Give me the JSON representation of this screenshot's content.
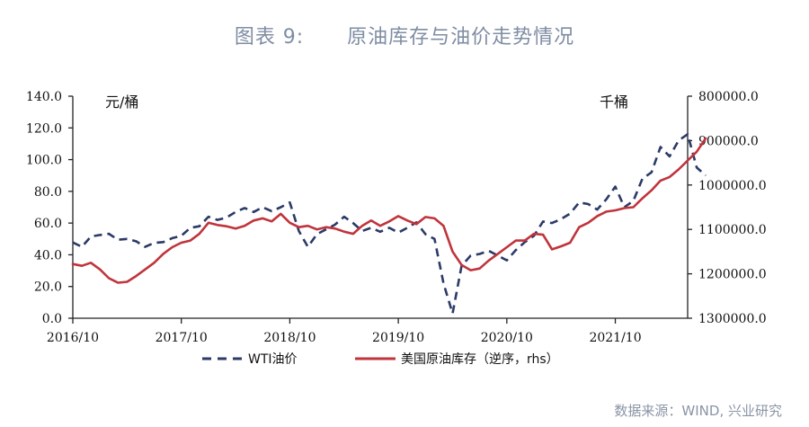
{
  "figure": {
    "title": "图表 9:      原油库存与油价走势情况",
    "source": "数据来源：WIND, 兴业研究"
  },
  "chart_data": {
    "type": "line",
    "x_tick_labels": [
      "2016/10",
      "2017/10",
      "2018/10",
      "2019/10",
      "2020/10",
      "2021/10"
    ],
    "x_range": [
      "2016/10",
      "2022/06"
    ],
    "left_axis": {
      "unit_label": "元/桶",
      "ylim": [
        0,
        140
      ],
      "tick_labels": [
        "0.0",
        "20.0",
        "40.0",
        "60.0",
        "80.0",
        "100.0",
        "120.0",
        "140.0"
      ]
    },
    "right_axis": {
      "unit_label": "千桶",
      "ylim": [
        800000,
        1300000
      ],
      "inverted": true,
      "tick_labels": [
        "800000.0",
        "900000.0",
        "1000000.0",
        "1100000.0",
        "1200000.0",
        "1300000.0"
      ]
    },
    "grid": false,
    "legend_position": "bottom",
    "series": [
      {
        "name": "WTI油价",
        "axis": "left",
        "color": "#2b3a67",
        "style": "dashed",
        "points": [
          [
            "2016/10",
            47.8
          ],
          [
            "2016/11",
            45.0
          ],
          [
            "2016/12",
            51.5
          ],
          [
            "2017/01",
            52.5
          ],
          [
            "2017/02",
            53.2
          ],
          [
            "2017/03",
            49.5
          ],
          [
            "2017/04",
            50.0
          ],
          [
            "2017/05",
            48.5
          ],
          [
            "2017/06",
            45.0
          ],
          [
            "2017/07",
            47.5
          ],
          [
            "2017/08",
            48.0
          ],
          [
            "2017/09",
            50.5
          ],
          [
            "2017/10",
            52.0
          ],
          [
            "2017/11",
            57.0
          ],
          [
            "2017/12",
            58.0
          ],
          [
            "2018/01",
            64.0
          ],
          [
            "2018/02",
            62.0
          ],
          [
            "2018/03",
            63.5
          ],
          [
            "2018/04",
            67.0
          ],
          [
            "2018/05",
            69.5
          ],
          [
            "2018/06",
            67.0
          ],
          [
            "2018/07",
            70.0
          ],
          [
            "2018/08",
            67.5
          ],
          [
            "2018/09",
            70.0
          ],
          [
            "2018/10",
            73.0
          ],
          [
            "2018/11",
            55.0
          ],
          [
            "2018/12",
            45.0
          ],
          [
            "2019/01",
            53.0
          ],
          [
            "2019/02",
            56.0
          ],
          [
            "2019/03",
            59.0
          ],
          [
            "2019/04",
            64.0
          ],
          [
            "2019/05",
            60.0
          ],
          [
            "2019/06",
            55.0
          ],
          [
            "2019/07",
            57.0
          ],
          [
            "2019/08",
            54.5
          ],
          [
            "2019/09",
            57.0
          ],
          [
            "2019/10",
            54.0
          ],
          [
            "2019/11",
            57.0
          ],
          [
            "2019/12",
            60.5
          ],
          [
            "2020/01",
            53.0
          ],
          [
            "2020/02",
            50.0
          ],
          [
            "2020/03",
            22.0
          ],
          [
            "2020/04",
            3.0
          ],
          [
            "2020/05",
            33.0
          ],
          [
            "2020/06",
            39.5
          ],
          [
            "2020/07",
            40.5
          ],
          [
            "2020/08",
            42.5
          ],
          [
            "2020/09",
            39.5
          ],
          [
            "2020/10",
            36.5
          ],
          [
            "2020/11",
            43.0
          ],
          [
            "2020/12",
            48.0
          ],
          [
            "2021/01",
            52.0
          ],
          [
            "2021/02",
            61.0
          ],
          [
            "2021/03",
            60.0
          ],
          [
            "2021/04",
            62.5
          ],
          [
            "2021/05",
            66.0
          ],
          [
            "2021/06",
            73.0
          ],
          [
            "2021/07",
            72.0
          ],
          [
            "2021/08",
            68.5
          ],
          [
            "2021/09",
            75.0
          ],
          [
            "2021/10",
            83.0
          ],
          [
            "2021/11",
            70.0
          ],
          [
            "2021/12",
            74.0
          ],
          [
            "2022/01",
            88.0
          ],
          [
            "2022/02",
            92.0
          ],
          [
            "2022/03",
            108.0
          ],
          [
            "2022/04",
            102.0
          ],
          [
            "2022/05",
            112.0
          ],
          [
            "2022/06",
            116.0
          ],
          [
            "2022/07",
            95.0
          ],
          [
            "2022/08",
            90.0
          ]
        ]
      },
      {
        "name": "美国原油库存（逆序，rhs）",
        "axis": "right",
        "color": "#c0343c",
        "style": "solid",
        "points": [
          [
            "2016/10",
            1178000
          ],
          [
            "2016/11",
            1182000
          ],
          [
            "2016/12",
            1175000
          ],
          [
            "2017/01",
            1190000
          ],
          [
            "2017/02",
            1210000
          ],
          [
            "2017/03",
            1220000
          ],
          [
            "2017/04",
            1218000
          ],
          [
            "2017/05",
            1205000
          ],
          [
            "2017/06",
            1190000
          ],
          [
            "2017/07",
            1175000
          ],
          [
            "2017/08",
            1155000
          ],
          [
            "2017/09",
            1140000
          ],
          [
            "2017/10",
            1130000
          ],
          [
            "2017/11",
            1125000
          ],
          [
            "2017/12",
            1110000
          ],
          [
            "2018/01",
            1085000
          ],
          [
            "2018/02",
            1090000
          ],
          [
            "2018/03",
            1093000
          ],
          [
            "2018/04",
            1098000
          ],
          [
            "2018/05",
            1092000
          ],
          [
            "2018/06",
            1080000
          ],
          [
            "2018/07",
            1075000
          ],
          [
            "2018/08",
            1082000
          ],
          [
            "2018/09",
            1065000
          ],
          [
            "2018/10",
            1085000
          ],
          [
            "2018/11",
            1095000
          ],
          [
            "2018/12",
            1092000
          ],
          [
            "2019/01",
            1100000
          ],
          [
            "2019/02",
            1095000
          ],
          [
            "2019/03",
            1098000
          ],
          [
            "2019/04",
            1105000
          ],
          [
            "2019/05",
            1110000
          ],
          [
            "2019/06",
            1092000
          ],
          [
            "2019/07",
            1080000
          ],
          [
            "2019/08",
            1092000
          ],
          [
            "2019/09",
            1082000
          ],
          [
            "2019/10",
            1070000
          ],
          [
            "2019/11",
            1080000
          ],
          [
            "2019/12",
            1088000
          ],
          [
            "2020/01",
            1072000
          ],
          [
            "2020/02",
            1075000
          ],
          [
            "2020/03",
            1092000
          ],
          [
            "2020/04",
            1150000
          ],
          [
            "2020/05",
            1180000
          ],
          [
            "2020/06",
            1192000
          ],
          [
            "2020/07",
            1188000
          ],
          [
            "2020/08",
            1170000
          ],
          [
            "2020/09",
            1155000
          ],
          [
            "2020/10",
            1140000
          ],
          [
            "2020/11",
            1125000
          ],
          [
            "2020/12",
            1125000
          ],
          [
            "2021/01",
            1110000
          ],
          [
            "2021/02",
            1112000
          ],
          [
            "2021/03",
            1145000
          ],
          [
            "2021/04",
            1138000
          ],
          [
            "2021/05",
            1130000
          ],
          [
            "2021/06",
            1095000
          ],
          [
            "2021/07",
            1085000
          ],
          [
            "2021/08",
            1070000
          ],
          [
            "2021/09",
            1060000
          ],
          [
            "2021/10",
            1057000
          ],
          [
            "2021/11",
            1052000
          ],
          [
            "2021/12",
            1050000
          ],
          [
            "2022/01",
            1030000
          ],
          [
            "2022/02",
            1012000
          ],
          [
            "2022/03",
            990000
          ],
          [
            "2022/04",
            982000
          ],
          [
            "2022/05",
            965000
          ],
          [
            "2022/06",
            945000
          ],
          [
            "2022/07",
            925000
          ],
          [
            "2022/08",
            895000
          ]
        ]
      }
    ]
  }
}
